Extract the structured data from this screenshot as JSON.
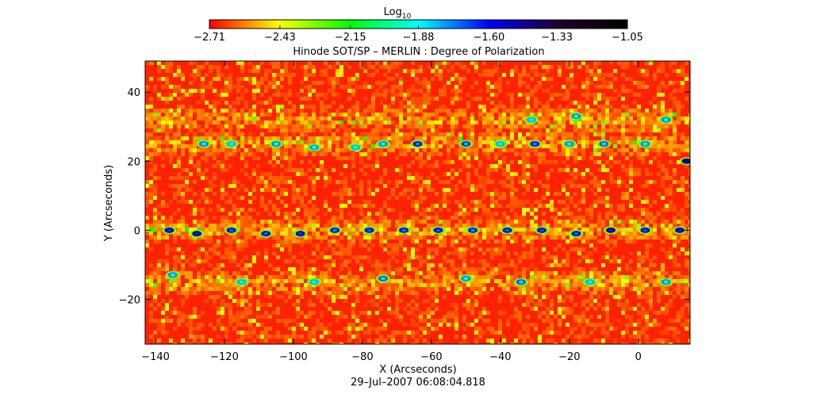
{
  "chart_data": {
    "type": "heatmap",
    "title": "Hinode SOT/SP – MERLIN : Degree of Polarization",
    "xlabel": "X (Arcseconds)",
    "ylabel": "Y (Arcseconds)",
    "date_label": "29–Jul–2007 06:08:04.818",
    "xlim": [
      -143,
      15
    ],
    "ylim": [
      -33,
      49
    ],
    "xticks": [
      -140,
      -120,
      -100,
      -80,
      -60,
      -40,
      -20,
      0
    ],
    "xtick_labels": [
      "−140",
      "−120",
      "−100",
      "−80",
      "−60",
      "−40",
      "−20",
      "0"
    ],
    "yticks": [
      -20,
      0,
      20,
      40
    ],
    "ytick_labels": [
      "−20",
      "0",
      "20",
      "40"
    ],
    "grid": false,
    "colorbar": {
      "title": "Log",
      "title_subscript": "10",
      "scale": "log10",
      "range": [
        -2.71,
        -1.05
      ],
      "tick_values": [
        -2.71,
        -2.43,
        -2.15,
        -1.88,
        -1.6,
        -1.33,
        -1.05
      ],
      "tick_labels": [
        "−2.71",
        "−2.43",
        "−2.15",
        "−1.88",
        "−1.60",
        "−1.33",
        "−1.05"
      ],
      "colors": [
        "#ff0000",
        "#ffff00",
        "#00ff00",
        "#00ffff",
        "#0000ff",
        "#200030",
        "#000000"
      ]
    },
    "background_level": -2.66,
    "enhanced_bands_y": [
      32,
      25,
      0,
      -15
    ],
    "bright_features": [
      {
        "x": -126,
        "y": 25,
        "v": -1.88
      },
      {
        "x": -118,
        "y": 25,
        "v": -1.95
      },
      {
        "x": -105,
        "y": 25,
        "v": -1.9
      },
      {
        "x": -94,
        "y": 24,
        "v": -1.92
      },
      {
        "x": -82,
        "y": 24,
        "v": -1.95
      },
      {
        "x": -74,
        "y": 25,
        "v": -1.9
      },
      {
        "x": -64,
        "y": 25,
        "v": -1.75
      },
      {
        "x": -50,
        "y": 25,
        "v": -1.8
      },
      {
        "x": -40,
        "y": 25,
        "v": -1.95
      },
      {
        "x": -30,
        "y": 25,
        "v": -1.75
      },
      {
        "x": -20,
        "y": 25,
        "v": -1.9
      },
      {
        "x": -10,
        "y": 25,
        "v": -1.85
      },
      {
        "x": 2,
        "y": 25,
        "v": -1.9
      },
      {
        "x": -31,
        "y": 32,
        "v": -1.95
      },
      {
        "x": -18,
        "y": 33,
        "v": -1.9
      },
      {
        "x": 8,
        "y": 32,
        "v": -1.9
      },
      {
        "x": -136,
        "y": 0,
        "v": -1.65
      },
      {
        "x": -128,
        "y": -1,
        "v": -1.62
      },
      {
        "x": -118,
        "y": 0,
        "v": -1.7
      },
      {
        "x": -108,
        "y": -1,
        "v": -1.7
      },
      {
        "x": -98,
        "y": -1,
        "v": -1.65
      },
      {
        "x": -88,
        "y": 0,
        "v": -1.75
      },
      {
        "x": -78,
        "y": 0,
        "v": -1.7
      },
      {
        "x": -68,
        "y": 0,
        "v": -1.72
      },
      {
        "x": -58,
        "y": 0,
        "v": -1.7
      },
      {
        "x": -48,
        "y": 0,
        "v": -1.75
      },
      {
        "x": -38,
        "y": 0,
        "v": -1.7
      },
      {
        "x": -28,
        "y": 0,
        "v": -1.68
      },
      {
        "x": -18,
        "y": -1,
        "v": -1.7
      },
      {
        "x": -8,
        "y": 0,
        "v": -1.62
      },
      {
        "x": 2,
        "y": 0,
        "v": -1.68
      },
      {
        "x": 12,
        "y": 0,
        "v": -1.62
      },
      {
        "x": -135,
        "y": -13,
        "v": -1.9
      },
      {
        "x": -115,
        "y": -15,
        "v": -1.95
      },
      {
        "x": -94,
        "y": -15,
        "v": -1.95
      },
      {
        "x": -74,
        "y": -14,
        "v": -1.85
      },
      {
        "x": -50,
        "y": -14,
        "v": -1.9
      },
      {
        "x": -34,
        "y": -15,
        "v": -1.85
      },
      {
        "x": -14,
        "y": -15,
        "v": -1.95
      },
      {
        "x": 8,
        "y": -15,
        "v": -1.9
      },
      {
        "x": 14,
        "y": 20,
        "v": -1.6
      }
    ]
  }
}
